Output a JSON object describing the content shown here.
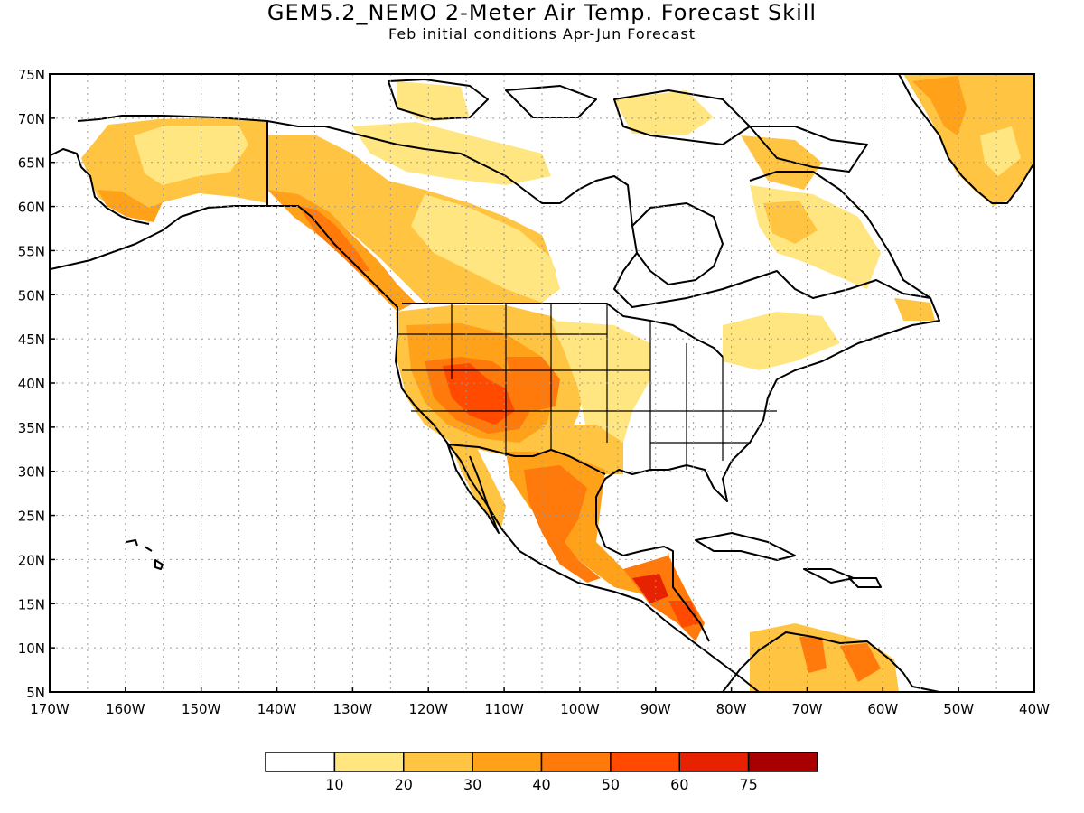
{
  "title": "GEM5.2_NEMO 2-Meter Air Temp. Forecast Skill",
  "subtitle": "Feb initial conditions  Apr-Jun Forecast",
  "map": {
    "lon_range": [
      -170,
      -40
    ],
    "lat_range": [
      5,
      75
    ],
    "lat_ticks": [
      "5N",
      "10N",
      "15N",
      "20N",
      "25N",
      "30N",
      "35N",
      "40N",
      "45N",
      "50N",
      "55N",
      "60N",
      "65N",
      "70N",
      "75N"
    ],
    "lon_ticks": [
      "170W",
      "160W",
      "150W",
      "140W",
      "130W",
      "120W",
      "110W",
      "100W",
      "90W",
      "80W",
      "70W",
      "60W",
      "50W",
      "40W"
    ]
  },
  "colors": {
    "c10": "#ffe680",
    "c20": "#ffc442",
    "c30": "#ffa21a",
    "c40": "#ff7a0a",
    "c50": "#ff4a00",
    "c60": "#e62200",
    "c75": "#a80000",
    "land_outline": "#000000",
    "grid": "#999999"
  },
  "colorbar": {
    "bins": [
      "#ffffff",
      "#ffe680",
      "#ffc442",
      "#ffa21a",
      "#ff7a0a",
      "#ff4a00",
      "#e62200",
      "#a80000"
    ],
    "labels": [
      "10",
      "20",
      "30",
      "40",
      "50",
      "60",
      "75"
    ]
  }
}
